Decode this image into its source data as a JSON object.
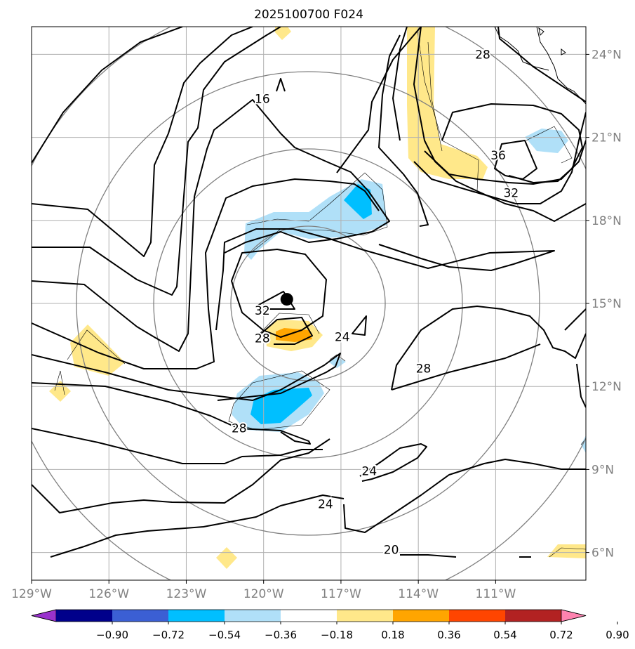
{
  "title": "2025100700 F024",
  "map": {
    "lon_range": [
      -129,
      -107.5
    ],
    "lat_range": [
      5,
      25
    ]
  },
  "lon_labels": [
    {
      "lon": -129,
      "label": "129°W"
    },
    {
      "lon": -126,
      "label": "126°W"
    },
    {
      "lon": -123,
      "label": "123°W"
    },
    {
      "lon": -120,
      "label": "120°W"
    },
    {
      "lon": -117,
      "label": "117°W"
    },
    {
      "lon": -114,
      "label": "114°W"
    },
    {
      "lon": -111,
      "label": "111°W"
    }
  ],
  "lat_labels": [
    {
      "lat": 24,
      "label": "24°N"
    },
    {
      "lat": 21,
      "label": "21°N"
    },
    {
      "lat": 18,
      "label": "18°N"
    },
    {
      "lat": 15,
      "label": "15°N"
    },
    {
      "lat": 12,
      "label": "12°N"
    },
    {
      "lat": 9,
      "label": "9°N"
    },
    {
      "lat": 6,
      "label": "6°N"
    }
  ],
  "contour_labels": [
    {
      "text": "16",
      "lon": -120.05,
      "lat": 22.4
    },
    {
      "text": "28",
      "lon": -111.5,
      "lat": 24.0
    },
    {
      "text": "36",
      "lon": -110.9,
      "lat": 20.35
    },
    {
      "text": "32",
      "lon": -110.4,
      "lat": 19.0
    },
    {
      "text": "32",
      "lon": -120.05,
      "lat": 14.75
    },
    {
      "text": "28",
      "lon": -120.05,
      "lat": 13.75
    },
    {
      "text": "24",
      "lon": -116.95,
      "lat": 13.8
    },
    {
      "text": "28",
      "lon": -113.8,
      "lat": 12.65
    },
    {
      "text": "28",
      "lon": -120.95,
      "lat": 10.5
    },
    {
      "text": "24",
      "lon": -115.9,
      "lat": 8.95
    },
    {
      "text": "24",
      "lon": -117.6,
      "lat": 7.75
    },
    {
      "text": "20",
      "lon": -115.05,
      "lat": 6.1
    }
  ],
  "center_marker": {
    "lon": -119.1,
    "lat": 15.15
  },
  "colorbar": {
    "colors": [
      "#9932cc",
      "#00008b",
      "#3b5fd4",
      "#00bfff",
      "#b0e0f8",
      "#ffffff",
      "#ffe88a",
      "#ffa500",
      "#ff4500",
      "#b22222",
      "#ff83b0"
    ],
    "tick_labels": [
      "−0.90",
      "−0.72",
      "−0.54",
      "−0.36",
      "−0.18",
      "0.18",
      "0.36",
      "0.54",
      "0.72",
      "0.90"
    ]
  }
}
